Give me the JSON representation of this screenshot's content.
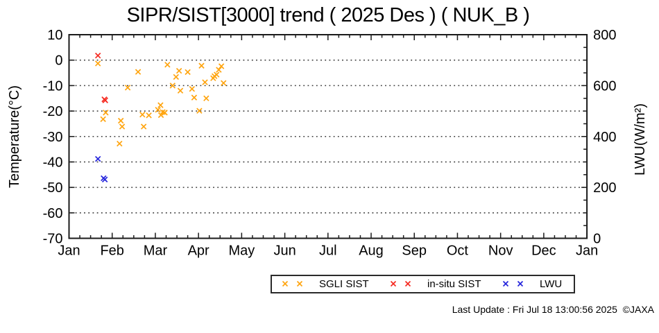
{
  "title": "SIPR/SIST[3000] trend ( 2025 Des ) ( NUK_B )",
  "footer": "Last Update : Fri Jul 18 13:00:56 2025  ©JAXA",
  "chart_data": {
    "type": "scatter",
    "title": "SIPR/SIST[3000] trend ( 2025 Des ) ( NUK_B )",
    "marker": "x",
    "grid": "horizontal-dotted",
    "legend_position": "bottom-center",
    "x_axis": {
      "unit": "months_from_jan1",
      "tick_labels": [
        "Jan",
        "Feb",
        "Mar",
        "Apr",
        "May",
        "Jun",
        "Jul",
        "Aug",
        "Sep",
        "Oct",
        "Nov",
        "Dec",
        "Jan"
      ],
      "minor_ticks_per_interval": 3,
      "range": [
        0,
        12
      ]
    },
    "y_left": {
      "label": "Temperature(°C)",
      "ticks": [
        10,
        0,
        -10,
        -20,
        -30,
        -40,
        -50,
        -60,
        -70
      ],
      "range": [
        -70,
        10
      ],
      "grid_at": [
        0,
        -10,
        -20,
        -30,
        -40,
        -50,
        -60
      ]
    },
    "y_right": {
      "label": "LWU(W/m²)",
      "ticks": [
        800,
        600,
        400,
        200,
        0
      ],
      "minor_step": 50,
      "range": [
        0,
        800
      ]
    },
    "colors": {
      "axis": "#1a1a1a",
      "grid": "#3a3a3a"
    },
    "series": [
      {
        "name": "SGLI SIST",
        "color": "#FFA510",
        "axis": "left",
        "points": [
          [
            0.67,
            -1.3
          ],
          [
            0.85,
            -20.6
          ],
          [
            0.79,
            -23.2
          ],
          [
            1.17,
            -32.8
          ],
          [
            1.2,
            -23.8
          ],
          [
            1.23,
            -26.1
          ],
          [
            1.36,
            -10.8
          ],
          [
            1.6,
            -4.6
          ],
          [
            1.7,
            -21.4
          ],
          [
            1.73,
            -26.1
          ],
          [
            1.85,
            -21.7
          ],
          [
            2.06,
            -19.5
          ],
          [
            2.12,
            -17.7
          ],
          [
            2.13,
            -21.6
          ],
          [
            2.17,
            -20.4
          ],
          [
            2.22,
            -20.6
          ],
          [
            2.28,
            -1.8
          ],
          [
            2.4,
            -10.0
          ],
          [
            2.48,
            -6.6
          ],
          [
            2.55,
            -4.2
          ],
          [
            2.58,
            -12.0
          ],
          [
            2.75,
            -4.7
          ],
          [
            2.85,
            -11.3
          ],
          [
            2.9,
            -14.7
          ],
          [
            3.02,
            -19.9
          ],
          [
            3.07,
            -2.2
          ],
          [
            3.15,
            -8.7
          ],
          [
            3.18,
            -15.0
          ],
          [
            3.34,
            -7.1
          ],
          [
            3.37,
            -6.3
          ],
          [
            3.42,
            -5.7
          ],
          [
            3.47,
            -3.8
          ],
          [
            3.53,
            -2.4
          ],
          [
            3.58,
            -9.0
          ]
        ]
      },
      {
        "name": "in-situ SIST",
        "color": "#F52A20",
        "axis": "left",
        "points": [
          [
            0.67,
            1.8
          ],
          [
            0.82,
            -15.4
          ],
          [
            0.84,
            -15.8
          ]
        ]
      },
      {
        "name": "LWU",
        "color": "#2424DC",
        "axis": "right",
        "points": [
          [
            0.67,
            312
          ],
          [
            0.8,
            236
          ],
          [
            0.83,
            231
          ]
        ]
      }
    ]
  }
}
